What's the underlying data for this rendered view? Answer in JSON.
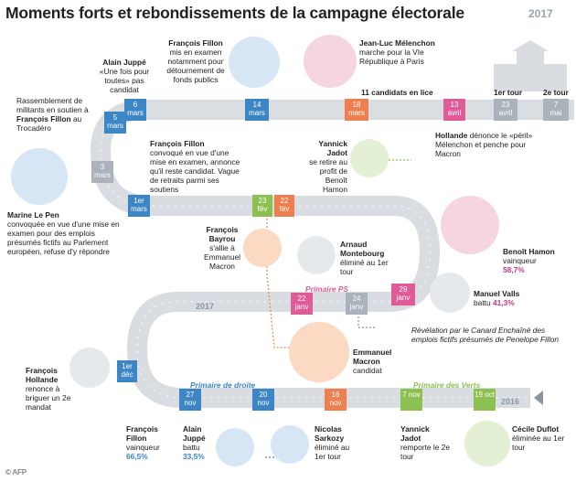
{
  "title": "Moments forts et rebondissements de la campagne électorale",
  "year_logo": "2017",
  "credit": "© AFP",
  "candidates_label": "11 candidats en lice",
  "tour1": "1er tour",
  "tour2": "2e tour",
  "year_2017": "2017",
  "year_2016": "2016",
  "primaries": {
    "ps": "Primaire PS",
    "droite": "Primaire de droite",
    "verts": "Primaire des Verts"
  },
  "dates": {
    "d7mai": "7 mai",
    "d23avril": "23 avril",
    "d13avril": "13 avril",
    "d18mars": "18 mars",
    "d14mars": "14 mars",
    "d6mars": "6 mars",
    "d5mars": "5 mars",
    "d3mars": "3 mars",
    "d1mars": "1er mars",
    "d23fev": "23 fév",
    "d22fev": "22 fév",
    "d29janv": "29 janv",
    "d24janv": "24 janv",
    "d22janv": "22 janv",
    "d1dec": "1er déc",
    "d27nov": "27 nov",
    "d20nov": "20 nov",
    "d16nov": "16 nov",
    "d7nov": "7 nov",
    "d19oct": "19 oct"
  },
  "events": {
    "juppe_name": "Alain Juppé",
    "juppe_text": "«Une fois pour toutes» pas candidat",
    "fillon_top_name": "François Fillon",
    "fillon_top_text": "mis en examen notamment pour détournement de fonds publics",
    "melenchon_name": "Jean-Luc Mélenchon",
    "melenchon_text": "marche pour la VIe République à Paris",
    "rassemblement_text": "Rassemblement de militants en soutien à",
    "rassemblement_name": "François Fillon",
    "rassemblement_place": "au Trocadéro",
    "fillon_mid_name": "François Fillon",
    "fillon_mid_text": "convoqué en vue d'une mise en examen, annonce qu'il reste candidat. Vague de retraits parmi ses soutiens",
    "jadot_name": "Yannick Jadot",
    "jadot_text": "se retire au profit de Benoît Hamon",
    "hollande_top_name": "Hollande",
    "hollande_top_text": "dénonce le «péril» Mélenchon et penche pour Macron",
    "lepen_name": "Marine Le Pen",
    "lepen_text": "convoquée en vue d'une mise en examen pour des emplois présumés fictifs au Parlement européen, refuse d'y répondre",
    "bayrou_name": "François Bayrou",
    "bayrou_text": "s'allie à Emmanuel Macron",
    "montebourg_name": "Arnaud Montebourg",
    "montebourg_text": "éliminé au 1er tour",
    "hamon_name": "Benoît Hamon",
    "hamon_text": "vainqueur",
    "hamon_pct": "58,7%",
    "valls_name": "Manuel Valls",
    "valls_text": "battu",
    "valls_pct": "41,3%",
    "canard_text": "Révélation par le Canard Enchaîné des emplois fictifs présumés de Penelope Fillon",
    "macron_name": "Emmanuel Macron",
    "macron_text": "candidat",
    "hollande_name": "François Hollande",
    "hollande_text": "renonce à briguer un 2e mandat",
    "fillon_bot_name": "François Fillon",
    "fillon_bot_text": "vainqueur",
    "fillon_bot_pct": "66,5%",
    "juppe_bot_name": "Alain Juppé",
    "juppe_bot_text": "battu",
    "juppe_bot_pct": "33,5%",
    "sarkozy_name": "Nicolas Sarkozy",
    "sarkozy_text": "éliminé au 1er tour",
    "jadot_bot_name": "Yannick Jadot",
    "jadot_bot_text": "remporte le 2e tour",
    "duflot_name": "Cécile Duflot",
    "duflot_text": "éliminée au 1er tour"
  },
  "colors": {
    "road": "#d9dde1",
    "blue": "#3d86c6",
    "pink": "#e05c98",
    "orange": "#f07f4f",
    "green": "#8cc152",
    "grey": "#aab3bb",
    "pinkbg": "#f6d5e3",
    "orangebg": "#fbd9c2",
    "greenbg": "#e4f0d3",
    "bluebg": "#d6e6f5"
  }
}
